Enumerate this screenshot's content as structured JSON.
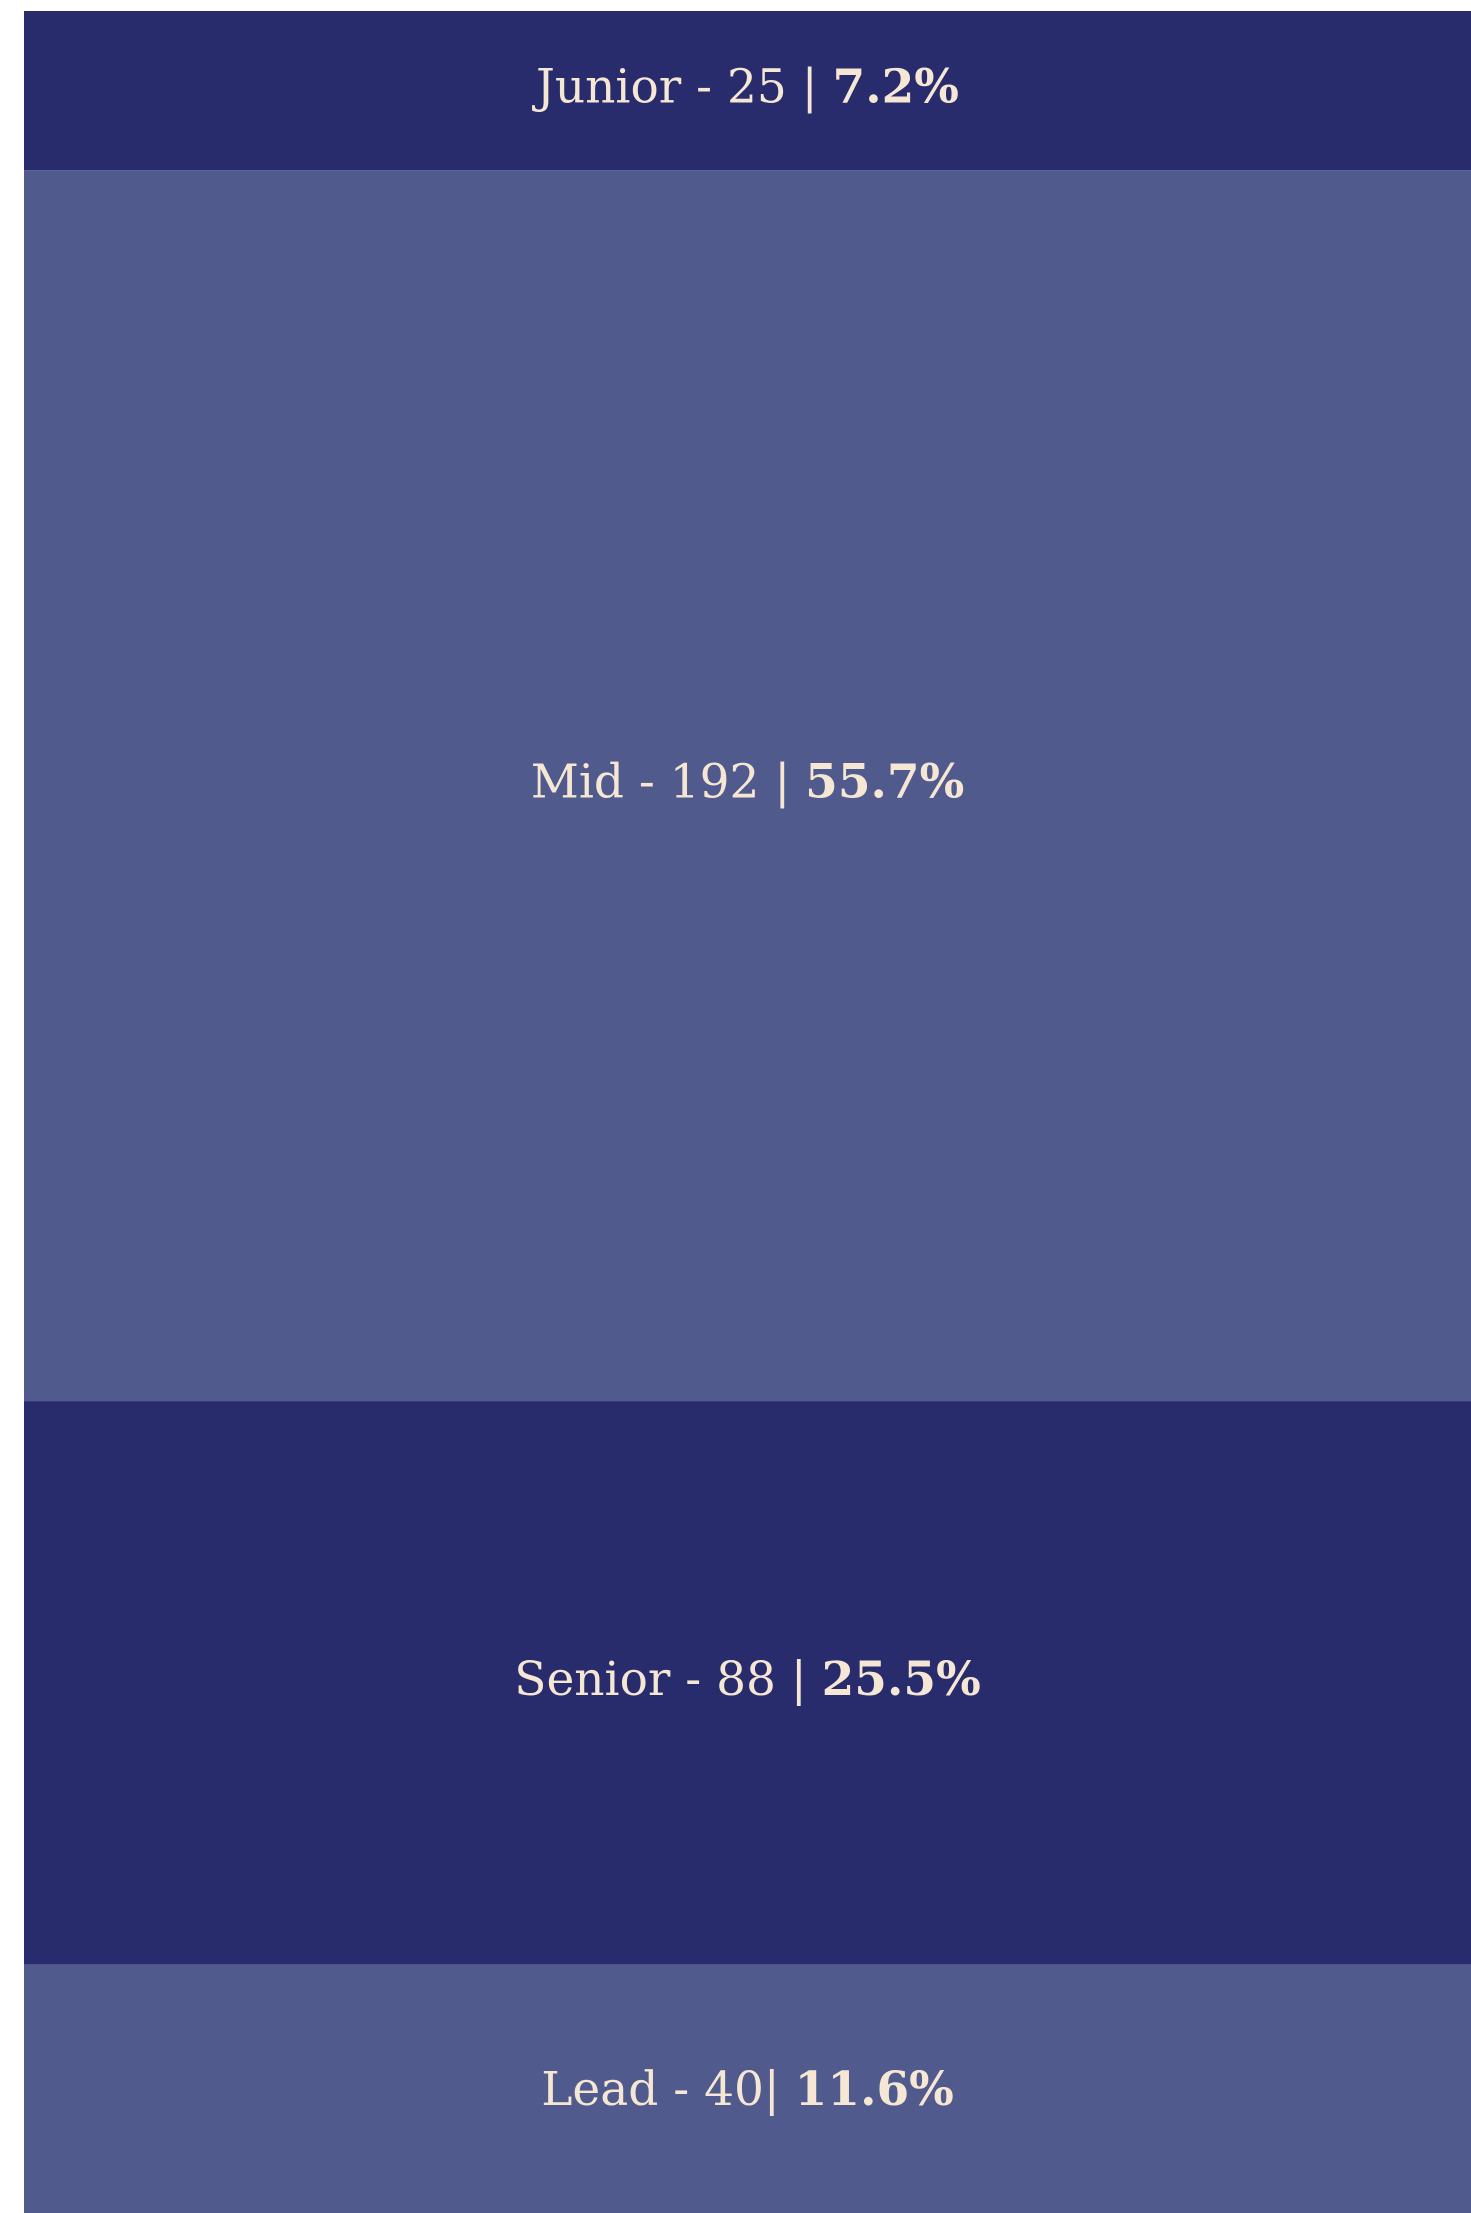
{
  "chart_data": {
    "type": "stacked-column",
    "labels": [
      "Junior - 25 | ",
      "Mid - 192 | ",
      "Senior - 88 | ",
      "Lead - 40| "
    ],
    "values": [
      7.2,
      55.7,
      25.5,
      11.6
    ],
    "value_labels": [
      "7.2%",
      "55.7%",
      "25.5%",
      "11.6%"
    ],
    "colors": [
      "#282c6c",
      "#515a8c",
      "#282c6c",
      "#515a8c"
    ]
  }
}
